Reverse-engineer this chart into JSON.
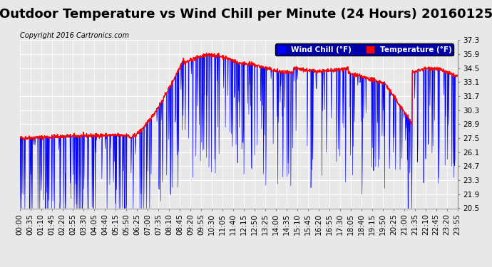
{
  "title": "Outdoor Temperature vs Wind Chill per Minute (24 Hours) 20160125",
  "copyright": "Copyright 2016 Cartronics.com",
  "legend_wind_chill": "Wind Chill (°F)",
  "legend_temperature": "Temperature (°F)",
  "ylim_min": 20.5,
  "ylim_max": 37.3,
  "yticks": [
    20.5,
    21.9,
    23.3,
    24.7,
    26.1,
    27.5,
    28.9,
    30.3,
    31.7,
    33.1,
    34.5,
    35.9,
    37.3
  ],
  "bg_color": "#e8e8e8",
  "plot_bg_color": "#e8e8e8",
  "grid_color": "#ffffff",
  "temp_color": "#ff0000",
  "wind_chill_color": "#0000ff",
  "wind_chill_fill": "#0000ff",
  "title_fontsize": 13,
  "tick_fontsize": 7.5,
  "xlabel_rotation": 90,
  "xtick_labels": [
    "00:00",
    "00:35",
    "01:10",
    "01:45",
    "02:20",
    "02:55",
    "03:30",
    "04:05",
    "04:40",
    "05:15",
    "05:50",
    "06:25",
    "07:00",
    "07:35",
    "08:10",
    "08:45",
    "09:20",
    "09:55",
    "10:30",
    "11:05",
    "11:40",
    "12:15",
    "12:50",
    "13:25",
    "14:00",
    "14:35",
    "15:10",
    "15:45",
    "16:20",
    "16:55",
    "17:30",
    "18:05",
    "18:40",
    "19:15",
    "19:50",
    "20:25",
    "21:00",
    "21:35",
    "22:10",
    "22:45",
    "23:20",
    "23:55"
  ],
  "num_points": 1440
}
